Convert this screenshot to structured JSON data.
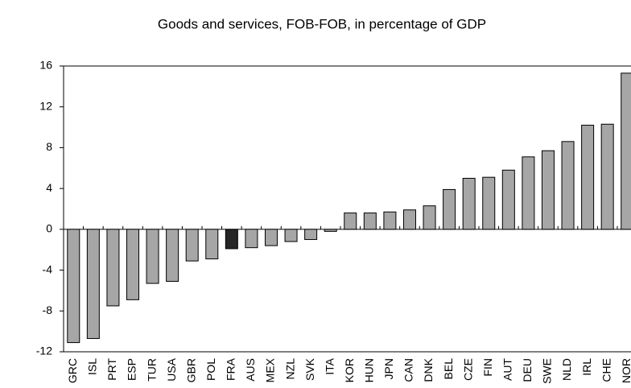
{
  "chart_data": {
    "type": "bar",
    "title": "Goods and services, FOB-FOB, in percentage of GDP",
    "categories": [
      "GRC",
      "ISL",
      "PRT",
      "ESP",
      "TUR",
      "USA",
      "GBR",
      "POL",
      "FRA",
      "AUS",
      "MEX",
      "NZL",
      "SVK",
      "ITA",
      "KOR",
      "HUN",
      "JPN",
      "CAN",
      "DNK",
      "BEL",
      "CZE",
      "FIN",
      "AUT",
      "DEU",
      "SWE",
      "NLD",
      "IRL",
      "CHE",
      "NOR"
    ],
    "values": [
      -11.1,
      -10.7,
      -7.5,
      -6.9,
      -5.3,
      -5.1,
      -3.1,
      -2.9,
      -1.9,
      -1.8,
      -1.6,
      -1.2,
      -1.0,
      -0.2,
      1.6,
      1.6,
      1.7,
      1.9,
      2.3,
      3.9,
      5.0,
      5.1,
      5.8,
      7.1,
      7.7,
      8.6,
      10.2,
      10.3,
      15.3
    ],
    "colors": [
      "#a6a6a6",
      "#a6a6a6",
      "#a6a6a6",
      "#a6a6a6",
      "#a6a6a6",
      "#a6a6a6",
      "#a6a6a6",
      "#a6a6a6",
      "#262626",
      "#a6a6a6",
      "#a6a6a6",
      "#a6a6a6",
      "#a6a6a6",
      "#a6a6a6",
      "#a6a6a6",
      "#a6a6a6",
      "#a6a6a6",
      "#a6a6a6",
      "#a6a6a6",
      "#a6a6a6",
      "#a6a6a6",
      "#a6a6a6",
      "#a6a6a6",
      "#a6a6a6",
      "#a6a6a6",
      "#a6a6a6",
      "#a6a6a6",
      "#a6a6a6",
      "#a6a6a6"
    ],
    "ylim": [
      -12,
      16
    ],
    "yticks": [
      -12,
      -8,
      -4,
      0,
      4,
      8,
      12,
      16
    ],
    "grid": false
  }
}
